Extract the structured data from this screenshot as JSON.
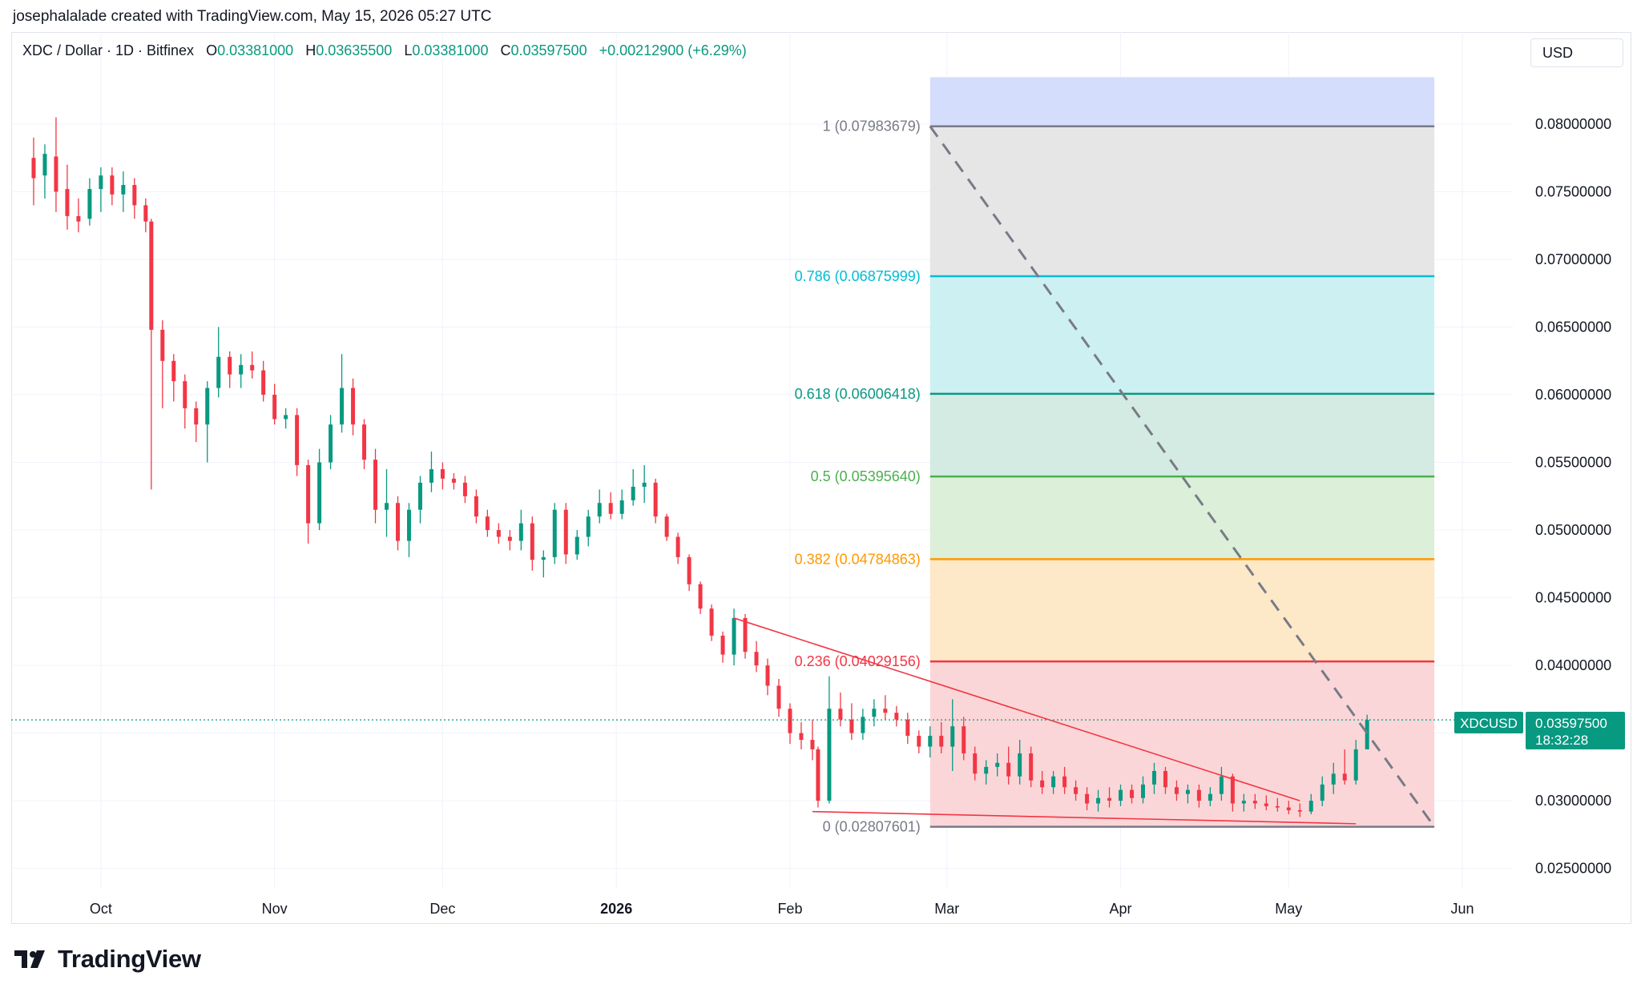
{
  "header": {
    "credit": "josephalalade created with TradingView.com, May 15, 2026 05:27 UTC"
  },
  "legend": {
    "symbol": "XDC / Dollar · 1D · Bitfinex",
    "open_label": "O",
    "open": "0.03381000",
    "high_label": "H",
    "high": "0.03635500",
    "low_label": "L",
    "low": "0.03381000",
    "close_label": "C",
    "close": "0.03597500",
    "change": "+0.00212900 (+6.29%)"
  },
  "currency_button": "USD",
  "price_badge": {
    "symbol": "XDCUSD",
    "price": "0.03597500",
    "countdown": "18:32:28"
  },
  "brand": {
    "name": "TradingView",
    "icon": "tradingview-logo-icon"
  },
  "colors": {
    "up": "#089981",
    "down": "#f23645",
    "trendline": "#f23645",
    "grid": "#f0f3fa"
  },
  "chart_data": {
    "type": "candlestick",
    "interval": "1D",
    "y_scale": "linear",
    "ylim": [
      0.0235,
      0.0868
    ],
    "y_ticks": [
      "0.08000000",
      "0.07500000",
      "0.07000000",
      "0.06500000",
      "0.06000000",
      "0.05500000",
      "0.05000000",
      "0.04500000",
      "0.04000000",
      "0.03500000",
      "0.03000000",
      "0.02500000"
    ],
    "x_ticks": [
      {
        "label": "Oct",
        "date": "2025-10-01"
      },
      {
        "label": "Nov",
        "date": "2025-11-01"
      },
      {
        "label": "Dec",
        "date": "2025-12-01"
      },
      {
        "label": "2026",
        "date": "2026-01-01",
        "bold": true
      },
      {
        "label": "Feb",
        "date": "2026-02-01"
      },
      {
        "label": "Mar",
        "date": "2026-03-01"
      },
      {
        "label": "Apr",
        "date": "2026-04-01"
      },
      {
        "label": "May",
        "date": "2026-05-01"
      },
      {
        "label": "Jun",
        "date": "2026-06-01"
      }
    ],
    "grid": true,
    "last_price": 0.035975,
    "ohlc": [
      [
        "2025-09-19",
        0.0775,
        0.079,
        0.074,
        0.076
      ],
      [
        "2025-09-21",
        0.0762,
        0.0785,
        0.0745,
        0.0778
      ],
      [
        "2025-09-23",
        0.0776,
        0.0805,
        0.0735,
        0.075
      ],
      [
        "2025-09-25",
        0.0752,
        0.077,
        0.0722,
        0.0732
      ],
      [
        "2025-09-27",
        0.0732,
        0.0745,
        0.072,
        0.0728
      ],
      [
        "2025-09-29",
        0.073,
        0.076,
        0.0725,
        0.0752
      ],
      [
        "2025-10-01",
        0.0752,
        0.0768,
        0.0735,
        0.0762
      ],
      [
        "2025-10-03",
        0.0762,
        0.0768,
        0.074,
        0.0748
      ],
      [
        "2025-10-05",
        0.0748,
        0.0765,
        0.0735,
        0.0755
      ],
      [
        "2025-10-07",
        0.0755,
        0.076,
        0.073,
        0.074
      ],
      [
        "2025-10-09",
        0.074,
        0.0745,
        0.072,
        0.0728
      ],
      [
        "2025-10-10",
        0.0728,
        0.073,
        0.053,
        0.0648
      ],
      [
        "2025-10-12",
        0.0648,
        0.0655,
        0.059,
        0.0625
      ],
      [
        "2025-10-14",
        0.0625,
        0.063,
        0.0595,
        0.061
      ],
      [
        "2025-10-16",
        0.061,
        0.0615,
        0.0575,
        0.059
      ],
      [
        "2025-10-18",
        0.059,
        0.0595,
        0.0565,
        0.0578
      ],
      [
        "2025-10-20",
        0.0578,
        0.061,
        0.055,
        0.0605
      ],
      [
        "2025-10-22",
        0.0605,
        0.065,
        0.0598,
        0.0628
      ],
      [
        "2025-10-24",
        0.0628,
        0.0632,
        0.0605,
        0.0615
      ],
      [
        "2025-10-26",
        0.0615,
        0.063,
        0.0605,
        0.0622
      ],
      [
        "2025-10-28",
        0.0622,
        0.0632,
        0.0612,
        0.0618
      ],
      [
        "2025-10-30",
        0.0618,
        0.0625,
        0.0595,
        0.06
      ],
      [
        "2025-11-01",
        0.06,
        0.0608,
        0.0578,
        0.0582
      ],
      [
        "2025-11-03",
        0.0582,
        0.059,
        0.0575,
        0.0585
      ],
      [
        "2025-11-05",
        0.0585,
        0.059,
        0.054,
        0.0548
      ],
      [
        "2025-11-07",
        0.0548,
        0.0552,
        0.049,
        0.0505
      ],
      [
        "2025-11-09",
        0.0505,
        0.056,
        0.05,
        0.055
      ],
      [
        "2025-11-11",
        0.055,
        0.0585,
        0.0545,
        0.0578
      ],
      [
        "2025-11-13",
        0.0578,
        0.063,
        0.0572,
        0.0605
      ],
      [
        "2025-11-15",
        0.0605,
        0.0612,
        0.057,
        0.0578
      ],
      [
        "2025-11-17",
        0.0578,
        0.0582,
        0.0545,
        0.0552
      ],
      [
        "2025-11-19",
        0.0552,
        0.056,
        0.0505,
        0.0515
      ],
      [
        "2025-11-21",
        0.0515,
        0.0545,
        0.0495,
        0.052
      ],
      [
        "2025-11-23",
        0.052,
        0.0525,
        0.0485,
        0.0492
      ],
      [
        "2025-11-25",
        0.0492,
        0.052,
        0.048,
        0.0515
      ],
      [
        "2025-11-27",
        0.0515,
        0.054,
        0.0505,
        0.0535
      ],
      [
        "2025-11-29",
        0.0535,
        0.0558,
        0.0528,
        0.0545
      ],
      [
        "2025-12-01",
        0.0545,
        0.055,
        0.053,
        0.0538
      ],
      [
        "2025-12-03",
        0.0538,
        0.0542,
        0.053,
        0.0535
      ],
      [
        "2025-12-05",
        0.0535,
        0.054,
        0.052,
        0.0525
      ],
      [
        "2025-12-07",
        0.0525,
        0.053,
        0.0505,
        0.051
      ],
      [
        "2025-12-09",
        0.051,
        0.0515,
        0.0495,
        0.05
      ],
      [
        "2025-12-11",
        0.05,
        0.0505,
        0.049,
        0.0495
      ],
      [
        "2025-12-13",
        0.0495,
        0.05,
        0.0485,
        0.0492
      ],
      [
        "2025-12-15",
        0.0492,
        0.0515,
        0.0485,
        0.0505
      ],
      [
        "2025-12-17",
        0.0505,
        0.051,
        0.047,
        0.0478
      ],
      [
        "2025-12-19",
        0.0478,
        0.0485,
        0.0465,
        0.048
      ],
      [
        "2025-12-21",
        0.048,
        0.052,
        0.0475,
        0.0515
      ],
      [
        "2025-12-23",
        0.0515,
        0.052,
        0.0475,
        0.0482
      ],
      [
        "2025-12-25",
        0.0482,
        0.05,
        0.0478,
        0.0495
      ],
      [
        "2025-12-27",
        0.0495,
        0.0515,
        0.0488,
        0.051
      ],
      [
        "2025-12-29",
        0.051,
        0.053,
        0.0505,
        0.052
      ],
      [
        "2025-12-31",
        0.052,
        0.0528,
        0.0508,
        0.0512
      ],
      [
        "2026-01-02",
        0.0512,
        0.053,
        0.0508,
        0.0522
      ],
      [
        "2026-01-04",
        0.0522,
        0.0545,
        0.0518,
        0.0532
      ],
      [
        "2026-01-06",
        0.0532,
        0.0548,
        0.052,
        0.0535
      ],
      [
        "2026-01-08",
        0.0535,
        0.0538,
        0.0505,
        0.051
      ],
      [
        "2026-01-10",
        0.051,
        0.0512,
        0.0492,
        0.0495
      ],
      [
        "2026-01-12",
        0.0495,
        0.0498,
        0.0475,
        0.048
      ],
      [
        "2026-01-14",
        0.048,
        0.0482,
        0.0455,
        0.046
      ],
      [
        "2026-01-16",
        0.046,
        0.0462,
        0.0438,
        0.0442
      ],
      [
        "2026-01-18",
        0.0442,
        0.0445,
        0.0418,
        0.0422
      ],
      [
        "2026-01-20",
        0.0422,
        0.0425,
        0.0402,
        0.0408
      ],
      [
        "2026-01-22",
        0.0408,
        0.0442,
        0.04,
        0.0435
      ],
      [
        "2026-01-24",
        0.0435,
        0.0438,
        0.0405,
        0.041
      ],
      [
        "2026-01-26",
        0.041,
        0.0418,
        0.0395,
        0.04
      ],
      [
        "2026-01-28",
        0.04,
        0.0405,
        0.0378,
        0.0385
      ],
      [
        "2026-01-30",
        0.0385,
        0.039,
        0.0362,
        0.0368
      ],
      [
        "2026-02-01",
        0.0368,
        0.0372,
        0.0342,
        0.035
      ],
      [
        "2026-02-03",
        0.035,
        0.0358,
        0.0338,
        0.0345
      ],
      [
        "2026-02-05",
        0.0345,
        0.036,
        0.033,
        0.0338
      ],
      [
        "2026-02-06",
        0.0338,
        0.034,
        0.0295,
        0.03
      ],
      [
        "2026-02-08",
        0.03,
        0.0392,
        0.0298,
        0.0368
      ],
      [
        "2026-02-10",
        0.0368,
        0.038,
        0.0355,
        0.036
      ],
      [
        "2026-02-12",
        0.036,
        0.0372,
        0.0345,
        0.035
      ],
      [
        "2026-02-14",
        0.035,
        0.0368,
        0.0345,
        0.0362
      ],
      [
        "2026-02-16",
        0.0362,
        0.0375,
        0.0355,
        0.0368
      ],
      [
        "2026-02-18",
        0.0368,
        0.0378,
        0.036,
        0.0365
      ],
      [
        "2026-02-20",
        0.0365,
        0.037,
        0.0355,
        0.036
      ],
      [
        "2026-02-22",
        0.036,
        0.0365,
        0.0342,
        0.0348
      ],
      [
        "2026-02-24",
        0.0348,
        0.0352,
        0.0335,
        0.034
      ],
      [
        "2026-02-26",
        0.034,
        0.0355,
        0.0332,
        0.0348
      ],
      [
        "2026-02-28",
        0.0348,
        0.0358,
        0.0335,
        0.034
      ],
      [
        "2026-03-02",
        0.034,
        0.0375,
        0.0322,
        0.0355
      ],
      [
        "2026-03-04",
        0.0355,
        0.0362,
        0.033,
        0.0335
      ],
      [
        "2026-03-06",
        0.0335,
        0.034,
        0.0315,
        0.032
      ],
      [
        "2026-03-08",
        0.032,
        0.033,
        0.0312,
        0.0325
      ],
      [
        "2026-03-10",
        0.0325,
        0.0335,
        0.0318,
        0.0328
      ],
      [
        "2026-03-12",
        0.0328,
        0.034,
        0.0312,
        0.0318
      ],
      [
        "2026-03-14",
        0.0318,
        0.0345,
        0.0312,
        0.0335
      ],
      [
        "2026-03-16",
        0.0335,
        0.034,
        0.031,
        0.0315
      ],
      [
        "2026-03-18",
        0.0315,
        0.0322,
        0.0305,
        0.031
      ],
      [
        "2026-03-20",
        0.031,
        0.0322,
        0.0305,
        0.0318
      ],
      [
        "2026-03-22",
        0.0318,
        0.0325,
        0.0305,
        0.031
      ],
      [
        "2026-03-24",
        0.031,
        0.0315,
        0.03,
        0.0305
      ],
      [
        "2026-03-26",
        0.0305,
        0.031,
        0.0293,
        0.0298
      ],
      [
        "2026-03-28",
        0.0298,
        0.0308,
        0.0292,
        0.0302
      ],
      [
        "2026-03-30",
        0.0302,
        0.031,
        0.0295,
        0.03
      ],
      [
        "2026-04-01",
        0.03,
        0.0312,
        0.0296,
        0.0308
      ],
      [
        "2026-04-03",
        0.0308,
        0.0312,
        0.0298,
        0.0302
      ],
      [
        "2026-04-05",
        0.0302,
        0.0318,
        0.0298,
        0.0312
      ],
      [
        "2026-04-07",
        0.0312,
        0.0328,
        0.0305,
        0.0322
      ],
      [
        "2026-04-09",
        0.0322,
        0.0325,
        0.0305,
        0.031
      ],
      [
        "2026-04-11",
        0.031,
        0.0315,
        0.03,
        0.0305
      ],
      [
        "2026-04-13",
        0.0305,
        0.0312,
        0.0298,
        0.0308
      ],
      [
        "2026-04-15",
        0.0308,
        0.0312,
        0.0295,
        0.03
      ],
      [
        "2026-04-17",
        0.03,
        0.031,
        0.0296,
        0.0305
      ],
      [
        "2026-04-19",
        0.0305,
        0.0325,
        0.03,
        0.0318
      ],
      [
        "2026-04-21",
        0.0318,
        0.032,
        0.0292,
        0.0298
      ],
      [
        "2026-04-23",
        0.0298,
        0.0305,
        0.0292,
        0.03
      ],
      [
        "2026-04-25",
        0.03,
        0.0305,
        0.0294,
        0.0298
      ],
      [
        "2026-04-27",
        0.0298,
        0.0304,
        0.0293,
        0.0296
      ],
      [
        "2026-04-29",
        0.0296,
        0.0302,
        0.0292,
        0.0295
      ],
      [
        "2026-05-01",
        0.0295,
        0.03,
        0.029,
        0.0293
      ],
      [
        "2026-05-03",
        0.0293,
        0.0298,
        0.0288,
        0.0292
      ],
      [
        "2026-05-05",
        0.0292,
        0.0305,
        0.029,
        0.03
      ],
      [
        "2026-05-07",
        0.03,
        0.0318,
        0.0296,
        0.0312
      ],
      [
        "2026-05-09",
        0.0312,
        0.0328,
        0.0305,
        0.032
      ],
      [
        "2026-05-11",
        0.032,
        0.0338,
        0.0312,
        0.0315
      ],
      [
        "2026-05-13",
        0.0315,
        0.0345,
        0.0312,
        0.0338
      ],
      [
        "2026-05-15",
        0.0338,
        0.036355,
        0.0338,
        0.035975
      ]
    ],
    "fib_retracement": {
      "start_date": "2026-02-26",
      "end_date": "2026-05-27",
      "levels": [
        {
          "ratio": 1,
          "price": 0.07983679,
          "label": "1 (0.07983679)",
          "color": "#787b86"
        },
        {
          "ratio": 0.786,
          "price": 0.06875999,
          "label": "0.786 (0.06875999)",
          "color": "#00bcd4"
        },
        {
          "ratio": 0.618,
          "price": 0.06006418,
          "label": "0.618 (0.06006418)",
          "color": "#089981"
        },
        {
          "ratio": 0.5,
          "price": 0.0539564,
          "label": "0.5 (0.05395640)",
          "color": "#4caf50"
        },
        {
          "ratio": 0.382,
          "price": 0.04784863,
          "label": "0.382 (0.04784863)",
          "color": "#ff9800"
        },
        {
          "ratio": 0.236,
          "price": 0.04029156,
          "label": "0.236 (0.04029156)",
          "color": "#f23645"
        },
        {
          "ratio": 0,
          "price": 0.02807601,
          "label": "0 (0.02807601)",
          "color": "#787b86"
        }
      ],
      "bands": [
        {
          "from": 1,
          "to": 1.07,
          "color": "#d5ddfc"
        },
        {
          "from": 0.786,
          "to": 1,
          "color": "#e6e6e6"
        },
        {
          "from": 0.618,
          "to": 0.786,
          "color": "#cdf0f3"
        },
        {
          "from": 0.5,
          "to": 0.618,
          "color": "#d3ebe2"
        },
        {
          "from": 0.382,
          "to": 0.5,
          "color": "#dbefd9"
        },
        {
          "from": 0.236,
          "to": 0.382,
          "color": "#fde8c8"
        },
        {
          "from": 0,
          "to": 0.236,
          "color": "#fbd6d8"
        }
      ],
      "diagonal": {
        "from": [
          "2026-02-26",
          0.07983679
        ],
        "to": [
          "2026-05-27",
          0.02807601
        ]
      }
    },
    "trendlines": [
      {
        "from": [
          "2026-01-22",
          0.0435
        ],
        "to": [
          "2026-05-03",
          0.03
        ]
      },
      {
        "from": [
          "2026-02-05",
          0.0292
        ],
        "to": [
          "2026-05-13",
          0.0283
        ]
      }
    ]
  }
}
